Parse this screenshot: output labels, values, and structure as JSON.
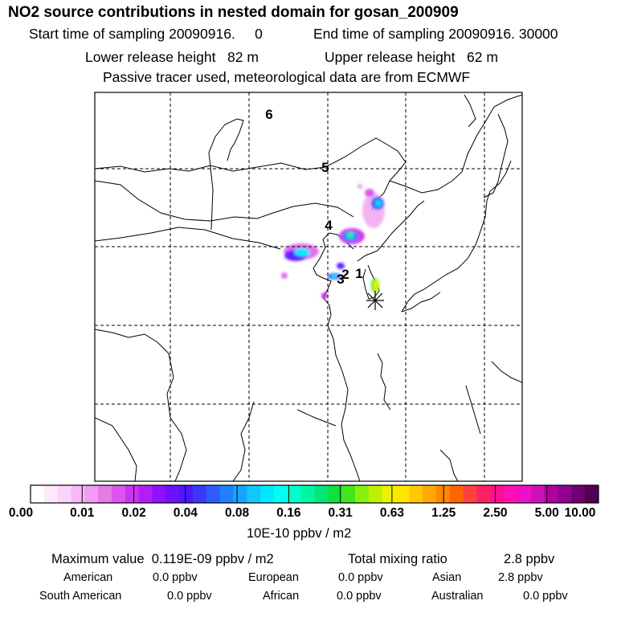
{
  "header": {
    "title": "NO2 source contributions in nested domain for gosan_200909",
    "start_time": "Start time of sampling 20090916.     0",
    "end_time": "End time of sampling 20090916. 30000",
    "lower_height": "Lower release height   82 m",
    "upper_height": "Upper release height   62 m",
    "tracer_note": "Passive tracer used, meteorological data are from ECMWF"
  },
  "map": {
    "region_labels": [
      "6",
      "5",
      "4",
      "3",
      "2",
      "1"
    ],
    "receptor": "gosan",
    "colors": {
      "frame": "#000000",
      "coast": "#000000",
      "grid": "#000000"
    }
  },
  "colorbar": {
    "tick_labels": [
      "0.00",
      "0.01",
      "0.02",
      "0.04",
      "0.08",
      "0.16",
      "0.31",
      "0.63",
      "1.25",
      "2.50",
      "5.00",
      "10.00"
    ],
    "unit": "10E-10 ppbv / m2",
    "colors": [
      "#ffffff",
      "#fde8fd",
      "#fbd3fb",
      "#f7b8f7",
      "#f09ef0",
      "#e67ae6",
      "#dd55ee",
      "#cc33f0",
      "#b01ff5",
      "#9010ff",
      "#6e10ff",
      "#5015ff",
      "#3a3aff",
      "#2e5cff",
      "#2080ff",
      "#19a3ff",
      "#10c8ff",
      "#00e8ff",
      "#00ffee",
      "#00ffcc",
      "#00f5a0",
      "#00e678",
      "#10e040",
      "#40e81a",
      "#88f010",
      "#c0f000",
      "#eef000",
      "#ffe600",
      "#ffc800",
      "#ffa800",
      "#ff8800",
      "#ff6600",
      "#ff4040",
      "#ff2060",
      "#ff1090",
      "#ff10b4",
      "#ee10c8",
      "#d010b8",
      "#b000a0",
      "#900090",
      "#700070",
      "#500050"
    ]
  },
  "summary": {
    "max_label": "Maximum value  0.119E-09 ppbv / m2",
    "total_label": "Total mixing ratio",
    "total_value": "2.8 ppbv"
  },
  "regions": [
    {
      "name": "American",
      "value": "0.0 ppbv"
    },
    {
      "name": "European",
      "value": "0.0 ppbv"
    },
    {
      "name": "Asian",
      "value": "2.8 ppbv"
    },
    {
      "name": "South American",
      "value": "0.0 ppbv"
    },
    {
      "name": "African",
      "value": "0.0 ppbv"
    },
    {
      "name": "Australian",
      "value": "0.0 ppbv"
    }
  ]
}
